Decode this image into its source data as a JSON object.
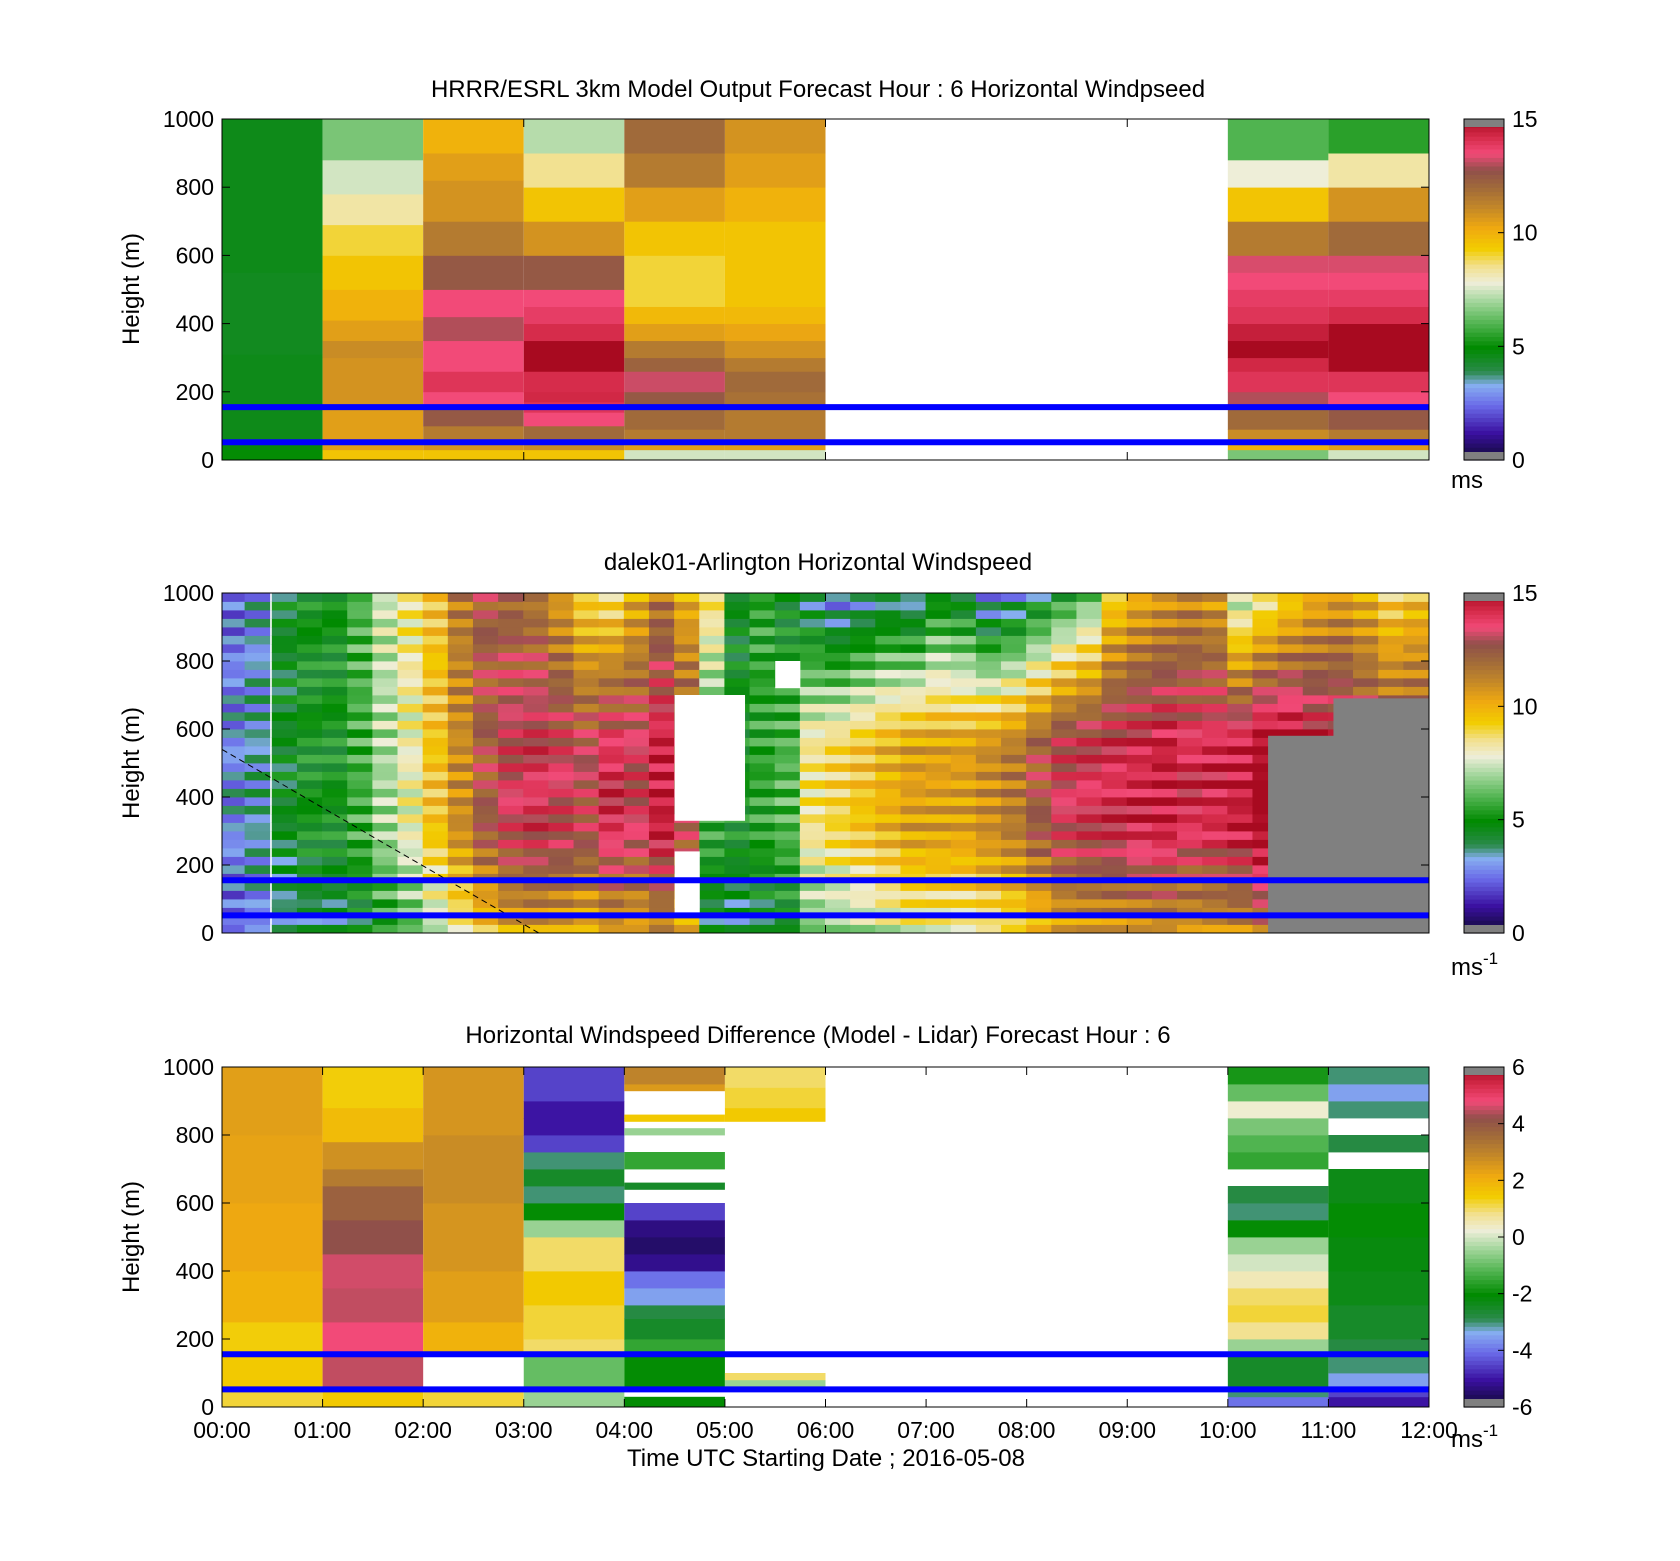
{
  "figure": {
    "xlabel": "Time UTC  Starting Date ; 2016-05-08",
    "line_color": "#0000ff"
  },
  "chart_data": [
    {
      "type": "heatmap",
      "title": "HRRR/ESRL 3km Model Output   Forecast Hour : 6 Horizontal Windpseed",
      "ylabel": "Height (m)",
      "colorbar_unit": "ms",
      "clim": [
        0,
        15
      ],
      "cbar_ticks": [
        "0",
        "5",
        "10",
        "15"
      ],
      "ylim": [
        0,
        1000
      ],
      "yticks": [
        "0",
        "200",
        "400",
        "600",
        "800",
        "1000"
      ],
      "xlim": [
        0,
        12
      ],
      "hlines_m": [
        155,
        52
      ],
      "missing_hours": [
        6,
        10
      ],
      "columns": [
        {
          "t": 0,
          "h": [
            30,
            60,
            150,
            310,
            420,
            550,
            1000
          ],
          "v": [
            5.0,
            4.8,
            4.6,
            4.6,
            4.5,
            4.5,
            4.6
          ]
        },
        {
          "t": 1,
          "h": [
            30,
            60,
            150,
            300,
            350,
            410,
            500,
            600,
            690,
            780,
            880,
            1000
          ],
          "v": [
            9.5,
            10.5,
            10.5,
            10.8,
            11.0,
            10.5,
            10.0,
            9.5,
            9.0,
            8.3,
            7.5,
            6.5
          ]
        },
        {
          "t": 2,
          "h": [
            30,
            60,
            100,
            150,
            200,
            260,
            350,
            420,
            500,
            600,
            700,
            820,
            900,
            1000
          ],
          "v": [
            9.5,
            10.8,
            11.5,
            12.5,
            13.5,
            14.0,
            13.5,
            13.0,
            13.5,
            12.5,
            11.5,
            10.8,
            10.5,
            10.0
          ]
        },
        {
          "t": 3,
          "h": [
            30,
            60,
            100,
            140,
            170,
            200,
            260,
            350,
            400,
            450,
            500,
            600,
            700,
            800,
            900,
            1000
          ],
          "v": [
            9.5,
            11.0,
            12.0,
            13.5,
            14.0,
            14.3,
            14.2,
            15.5,
            14.2,
            13.8,
            13.5,
            12.5,
            10.8,
            9.5,
            8.5,
            7.2
          ]
        },
        {
          "t": 4,
          "h": [
            30,
            60,
            90,
            150,
            200,
            260,
            300,
            350,
            400,
            450,
            520,
            600,
            700,
            800,
            900,
            1000
          ],
          "v": [
            7.5,
            10.5,
            11.5,
            12.0,
            12.5,
            13.2,
            12.2,
            11.5,
            10.5,
            9.8,
            9.0,
            9.0,
            9.5,
            10.5,
            11.5,
            12.0
          ]
        },
        {
          "t": 5,
          "h": [
            30,
            60,
            90,
            150,
            200,
            260,
            300,
            350,
            400,
            450,
            520,
            600,
            700,
            800,
            900,
            1000
          ],
          "v": [
            7.5,
            10.5,
            11.5,
            11.5,
            11.8,
            12.0,
            11.5,
            10.8,
            10.3,
            9.8,
            9.5,
            9.5,
            9.5,
            10.0,
            10.5,
            10.8
          ]
        },
        {
          "t": 10,
          "h": [
            30,
            60,
            90,
            150,
            200,
            260,
            300,
            350,
            400,
            450,
            500,
            550,
            600,
            700,
            800,
            880,
            1000
          ],
          "v": [
            6.5,
            10.0,
            11.0,
            12.0,
            13.0,
            14.0,
            14.3,
            15.5,
            14.5,
            14.0,
            13.8,
            13.5,
            13.3,
            11.5,
            9.5,
            7.8,
            6.0
          ]
        },
        {
          "t": 11,
          "h": [
            30,
            60,
            90,
            150,
            200,
            260,
            350,
            400,
            450,
            500,
            550,
            600,
            700,
            800,
            900,
            1000
          ],
          "v": [
            7.5,
            10.5,
            11.5,
            12.5,
            13.5,
            14.0,
            15.5,
            15.5,
            14.2,
            13.8,
            13.5,
            13.3,
            12.0,
            10.8,
            8.3,
            5.5
          ]
        }
      ]
    },
    {
      "type": "heatmap",
      "title": "dalek01-Arlington  Horizontal Windspeed",
      "ylabel": "Height (m)",
      "colorbar_unit": "ms",
      "colorbar_unit_sup": "-1",
      "clim": [
        0,
        15
      ],
      "cbar_ticks": [
        "0",
        "5",
        "10",
        "15"
      ],
      "ylim": [
        0,
        1000
      ],
      "yticks": [
        "0",
        "200",
        "400",
        "600",
        "800",
        "1000"
      ],
      "xlim": [
        0,
        12
      ],
      "hlines_m": [
        155,
        52
      ],
      "time_step_min": 15,
      "profile_time_h": [
        0.12,
        0.35,
        0.62,
        0.87,
        1.12,
        1.37,
        1.62,
        1.87,
        2.12,
        2.37,
        2.62,
        2.87,
        3.12,
        3.37,
        3.62,
        3.87,
        4.12,
        4.37,
        4.62,
        4.87,
        5.12,
        5.37,
        5.62,
        5.87,
        6.12,
        6.37,
        6.62,
        6.87,
        7.12,
        7.37,
        7.62,
        7.87,
        8.12,
        8.37,
        8.62,
        8.87,
        9.12,
        9.37,
        9.62,
        9.87,
        10.12,
        10.37,
        10.62,
        10.87,
        11.12,
        11.37,
        11.62,
        11.87
      ],
      "profile_mid_m": [
        3.0,
        3.5,
        4.5,
        5.0,
        5.0,
        5.8,
        7.0,
        8.0,
        9.5,
        11.0,
        12.5,
        13.5,
        13.8,
        13.5,
        13.0,
        14.0,
        13.5,
        14.5,
        13.0,
        5.5,
        5.0,
        5.5,
        6.0,
        8.5,
        9.0,
        9.5,
        10.0,
        10.5,
        10.5,
        10.5,
        11.0,
        11.5,
        12.5,
        13.5,
        13.8,
        14.0,
        14.2,
        14.5,
        14.0,
        14.2,
        14.5,
        15.5,
        15.5,
        14.5,
        14.2,
        13.5,
        13.0,
        13.0
      ],
      "profile_top_m": [
        2.5,
        3.0,
        4.5,
        5.0,
        5.0,
        6.0,
        7.5,
        8.5,
        9.5,
        11.5,
        12.5,
        12.0,
        11.5,
        10.5,
        9.0,
        8.5,
        10.0,
        11.5,
        10.0,
        9.0,
        4.5,
        5.5,
        4.5,
        3.5,
        2.5,
        3.0,
        3.5,
        3.0,
        4.5,
        4.0,
        2.5,
        3.0,
        4.0,
        5.0,
        6.0,
        9.0,
        10.0,
        10.5,
        11.0,
        10.5,
        7.0,
        8.0,
        9.0,
        10.0,
        10.5,
        10.0,
        9.0,
        9.5
      ],
      "missing_patches_m": [
        {
          "t0": 4.5,
          "t1": 5.2,
          "h0": 330,
          "h1": 700
        },
        {
          "t0": 4.5,
          "t1": 4.75,
          "h0": 60,
          "h1": 240
        },
        {
          "t0": 5.5,
          "t1": 5.75,
          "h0": 720,
          "h1": 800
        }
      ],
      "low_quality_patches_m": [
        {
          "t0": 10.4,
          "t1": 12.0,
          "h0": 0,
          "h1": 580
        },
        {
          "t0": 11.05,
          "t1": 12.0,
          "h0": 0,
          "h1": 690
        }
      ],
      "dashed_line": {
        "t0": 0.0,
        "h0": 540,
        "t1": 3.15,
        "h1": 0
      }
    },
    {
      "type": "heatmap",
      "title": "Horizontal Windspeed Difference (Model - Lidar) Forecast Hour : 6",
      "ylabel": "Height (m)",
      "colorbar_unit": "ms",
      "colorbar_unit_sup": "-1",
      "clim": [
        -6,
        6
      ],
      "cbar_ticks": [
        "-6",
        "-4",
        "-2",
        "0",
        "2",
        "4",
        "6"
      ],
      "ylim": [
        0,
        1000
      ],
      "yticks": [
        "0",
        "200",
        "400",
        "600",
        "800",
        "1000"
      ],
      "xlim": [
        0,
        12
      ],
      "xticks": [
        "00:00",
        "01:00",
        "02:00",
        "03:00",
        "04:00",
        "05:00",
        "06:00",
        "07:00",
        "08:00",
        "09:00",
        "10:00",
        "11:00",
        "12:00"
      ],
      "hlines_m": [
        155,
        52
      ],
      "columns": [
        {
          "t": 0,
          "h": [
            50,
            150,
            250,
            400,
            600,
            800,
            1000
          ],
          "v": [
            1.2,
            1.5,
            1.4,
            2.0,
            2.2,
            2.3,
            2.4
          ]
        },
        {
          "t": 1,
          "h": [
            50,
            150,
            250,
            350,
            450,
            550,
            650,
            700,
            780,
            880,
            1000
          ],
          "v": [
            1.5,
            4.5,
            4.8,
            4.5,
            4.6,
            4.2,
            3.8,
            3.2,
            2.7,
            1.8,
            1.4
          ]
        },
        {
          "t": 2,
          "h": [
            50,
            150,
            250,
            400,
            600,
            800,
            1000
          ],
          "v": [
            1.2,
            null,
            2.0,
            2.4,
            2.6,
            2.8,
            2.6
          ]
        },
        {
          "t": 3,
          "h": [
            60,
            150,
            200,
            300,
            400,
            500,
            550,
            600,
            650,
            700,
            750,
            800,
            850,
            900,
            1000
          ],
          "v": [
            -0.5,
            -1.0,
            1.0,
            1.2,
            1.5,
            1.0,
            -0.5,
            -2.0,
            -3.0,
            -2.5,
            -3.0,
            -4.5,
            -5.0,
            -5.0,
            -4.5
          ]
        },
        {
          "t": 4,
          "h": [
            30,
            60,
            150,
            200,
            260,
            300,
            350,
            400,
            450,
            500,
            550,
            600,
            640,
            660,
            700,
            750,
            800,
            820,
            840,
            860,
            900,
            930,
            950,
            1000
          ],
          "v": [
            -2.0,
            null,
            -2.0,
            -1.5,
            -2.5,
            -2.8,
            -3.5,
            -4.0,
            -5.2,
            -5.5,
            -5.3,
            -4.5,
            null,
            -2.5,
            null,
            -1.5,
            null,
            -0.5,
            null,
            1.5,
            null,
            null,
            2.5,
            3.0
          ]
        },
        {
          "t": 5,
          "h": [
            60,
            80,
            100,
            840,
            880,
            940,
            1000
          ],
          "v": [
            null,
            -0.5,
            1.0,
            null,
            1.5,
            1.2,
            1.0
          ]
        },
        {
          "t": 10,
          "h": [
            30,
            60,
            150,
            200,
            250,
            300,
            350,
            400,
            450,
            500,
            550,
            600,
            650,
            700,
            750,
            800,
            850,
            900,
            950,
            1000
          ],
          "v": [
            -4.0,
            -3.0,
            -2.5,
            -0.5,
            0.8,
            1.2,
            1.0,
            0.5,
            0.0,
            -0.5,
            -2.0,
            -3.0,
            -2.8,
            null,
            -1.5,
            -1.2,
            -0.8,
            0.3,
            -1.0,
            -1.8
          ]
        },
        {
          "t": 11,
          "h": [
            30,
            60,
            100,
            150,
            200,
            300,
            400,
            500,
            600,
            700,
            750,
            800,
            850,
            900,
            950,
            1000
          ],
          "v": [
            -5.0,
            -4.5,
            -3.5,
            -3.0,
            -2.8,
            -2.5,
            -2.3,
            -2.2,
            -2.0,
            -2.3,
            null,
            -2.8,
            null,
            -3.0,
            -3.5,
            -3.0
          ]
        }
      ]
    }
  ]
}
